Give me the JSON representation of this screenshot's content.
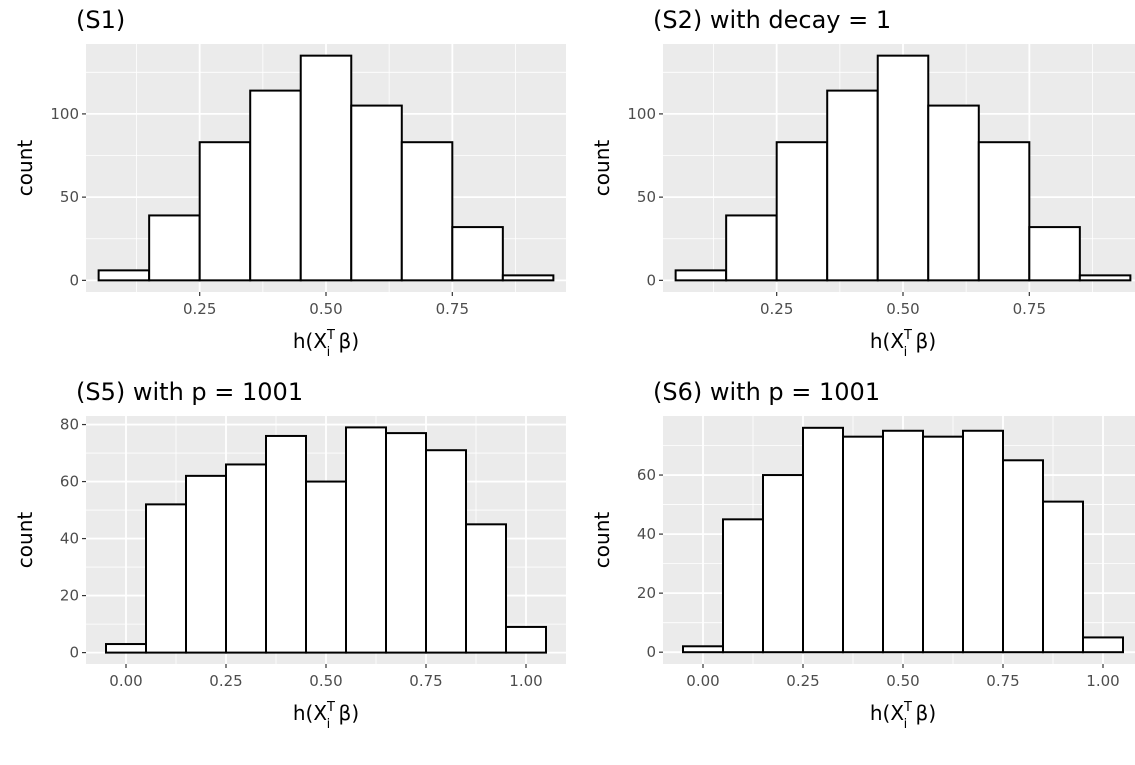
{
  "chart_data": [
    {
      "type": "bar",
      "title": "(S1)",
      "xlabel": "h(X_i^T β)",
      "ylabel": "count",
      "bins": [
        [
          0.05,
          0.15
        ],
        [
          0.15,
          0.25
        ],
        [
          0.25,
          0.35
        ],
        [
          0.35,
          0.45
        ],
        [
          0.45,
          0.55
        ],
        [
          0.55,
          0.65
        ],
        [
          0.65,
          0.75
        ],
        [
          0.75,
          0.85
        ],
        [
          0.85,
          0.95
        ]
      ],
      "values": [
        6,
        39,
        83,
        114,
        135,
        105,
        83,
        32,
        3
      ],
      "xlim": [
        0.025,
        0.975
      ],
      "ylim": [
        -7,
        142
      ],
      "xticks": [
        0.25,
        0.5,
        0.75
      ],
      "xtick_labels": [
        "0.25",
        "0.50",
        "0.75"
      ],
      "yticks": [
        0,
        50,
        100
      ],
      "ytick_labels": [
        "0",
        "50",
        "100"
      ],
      "grid": true
    },
    {
      "type": "bar",
      "title": "(S2) with decay = 1",
      "xlabel": "h(X_i^T β)",
      "ylabel": "count",
      "bins": [
        [
          0.05,
          0.15
        ],
        [
          0.15,
          0.25
        ],
        [
          0.25,
          0.35
        ],
        [
          0.35,
          0.45
        ],
        [
          0.45,
          0.55
        ],
        [
          0.55,
          0.65
        ],
        [
          0.65,
          0.75
        ],
        [
          0.75,
          0.85
        ],
        [
          0.85,
          0.95
        ]
      ],
      "values": [
        6,
        39,
        83,
        114,
        135,
        105,
        83,
        32,
        3
      ],
      "xlim": [
        0.025,
        0.975
      ],
      "ylim": [
        -7,
        142
      ],
      "xticks": [
        0.25,
        0.5,
        0.75
      ],
      "xtick_labels": [
        "0.25",
        "0.50",
        "0.75"
      ],
      "yticks": [
        0,
        50,
        100
      ],
      "ytick_labels": [
        "0",
        "50",
        "100"
      ],
      "grid": true
    },
    {
      "type": "bar",
      "title": "(S5) with p = 1001",
      "xlabel": "h(X_i^T β)",
      "ylabel": "count",
      "bins": [
        [
          -0.05,
          0.05
        ],
        [
          0.05,
          0.15
        ],
        [
          0.15,
          0.25
        ],
        [
          0.25,
          0.35
        ],
        [
          0.35,
          0.45
        ],
        [
          0.45,
          0.55
        ],
        [
          0.55,
          0.65
        ],
        [
          0.65,
          0.75
        ],
        [
          0.75,
          0.85
        ],
        [
          0.85,
          0.95
        ],
        [
          0.95,
          1.05
        ]
      ],
      "values": [
        3,
        52,
        62,
        66,
        76,
        60,
        79,
        77,
        71,
        45,
        9
      ],
      "xlim": [
        -0.1,
        1.1
      ],
      "ylim": [
        -4,
        83
      ],
      "xticks": [
        0,
        0.25,
        0.5,
        0.75,
        1
      ],
      "xtick_labels": [
        "0.00",
        "0.25",
        "0.50",
        "0.75",
        "1.00"
      ],
      "yticks": [
        0,
        20,
        40,
        60,
        80
      ],
      "ytick_labels": [
        "0",
        "20",
        "40",
        "60",
        "80"
      ],
      "grid": true
    },
    {
      "type": "bar",
      "title": "(S6) with p = 1001",
      "xlabel": "h(X_i^T β)",
      "ylabel": "count",
      "bins": [
        [
          -0.05,
          0.05
        ],
        [
          0.05,
          0.15
        ],
        [
          0.15,
          0.25
        ],
        [
          0.25,
          0.35
        ],
        [
          0.35,
          0.45
        ],
        [
          0.45,
          0.55
        ],
        [
          0.55,
          0.65
        ],
        [
          0.65,
          0.75
        ],
        [
          0.75,
          0.85
        ],
        [
          0.85,
          0.95
        ],
        [
          0.95,
          1.05
        ]
      ],
      "values": [
        2,
        45,
        60,
        76,
        73,
        75,
        73,
        75,
        65,
        51,
        5
      ],
      "xlim": [
        -0.1,
        1.1
      ],
      "ylim": [
        -4,
        80
      ],
      "xticks": [
        0,
        0.25,
        0.5,
        0.75,
        1
      ],
      "xtick_labels": [
        "0.00",
        "0.25",
        "0.50",
        "0.75",
        "1.00"
      ],
      "yticks": [
        0,
        20,
        40,
        60
      ],
      "ytick_labels": [
        "0",
        "20",
        "40",
        "60"
      ],
      "grid": true
    }
  ],
  "colors": {
    "panel_background": "#ebebeb",
    "grid_major": "#ffffff",
    "bar_fill": "#ffffff",
    "bar_outline": "#000000",
    "tick_text": "#4d4d4d"
  }
}
